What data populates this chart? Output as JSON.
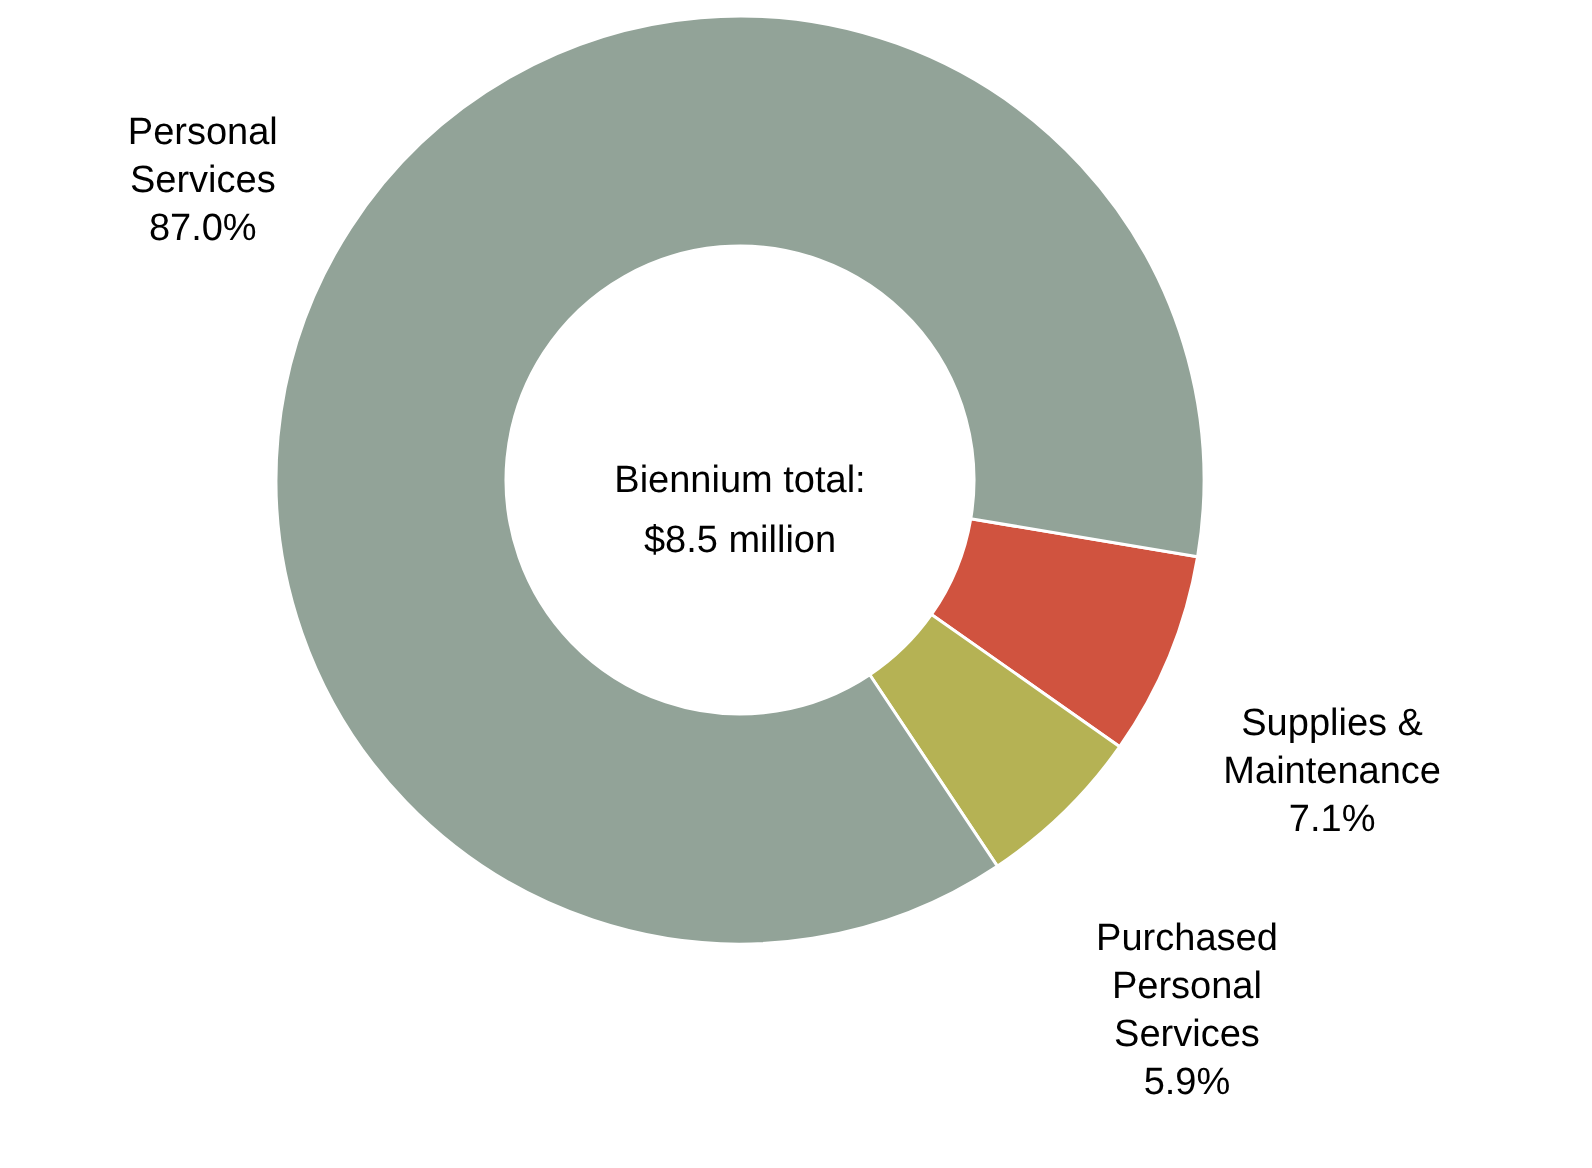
{
  "chart_data": {
    "type": "donut",
    "categories": [
      "Supplies & Maintenance",
      "Purchased Personal Services",
      "Personal Services"
    ],
    "values": [
      7.1,
      5.9,
      87.0
    ],
    "colors": [
      "#d0533f",
      "#b5b254",
      "#92a398"
    ],
    "value_labels": [
      "7.1%",
      "5.9%",
      "87.0%"
    ],
    "annotations": [
      "Biennium total: $8.5 million"
    ]
  }
}
